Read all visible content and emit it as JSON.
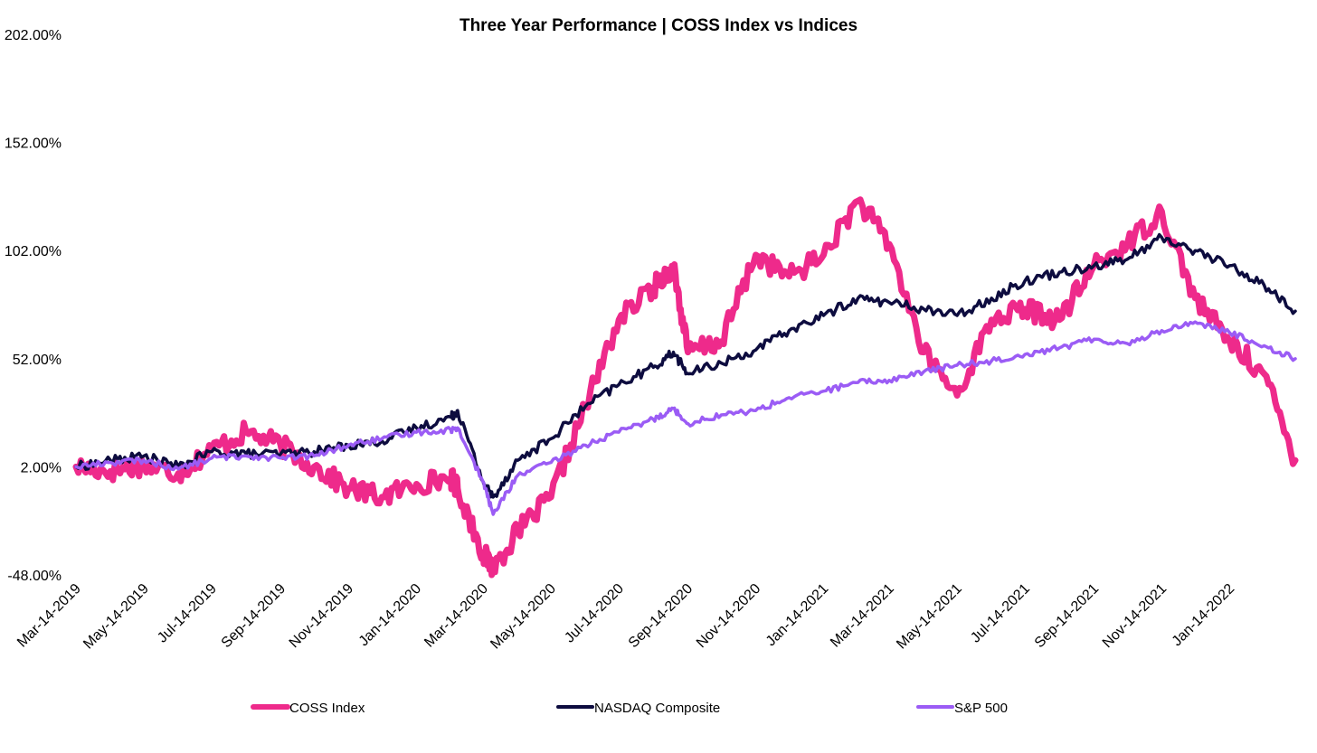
{
  "chart_data": {
    "type": "line",
    "title": "Three Year Performance | COSS Index vs Indices",
    "xlabel": "",
    "ylabel": "",
    "y_unit": "%",
    "ylim": [
      -48,
      202
    ],
    "y_ticks": [
      "202.00%",
      "152.00%",
      "102.00%",
      "52.00%",
      "2.00%",
      "-48.00%"
    ],
    "y_tick_values": [
      202,
      152,
      102,
      52,
      2,
      -48
    ],
    "x_ticks": [
      "Mar-14-2019",
      "May-14-2019",
      "Jul-14-2019",
      "Sep-14-2019",
      "Nov-14-2019",
      "Jan-14-2020",
      "Mar-14-2020",
      "May-14-2020",
      "Jul-14-2020",
      "Sep-14-2020",
      "Nov-14-2020",
      "Jan-14-2021",
      "Mar-14-2021",
      "May-14-2021",
      "Jul-14-2021",
      "Sep-14-2021",
      "Nov-14-2021",
      "Jan-14-2022"
    ],
    "grid": false,
    "legend_position": "bottom",
    "x": [
      "2019-03-14",
      "2019-04-14",
      "2019-05-14",
      "2019-06-14",
      "2019-07-14",
      "2019-08-14",
      "2019-09-14",
      "2019-10-14",
      "2019-11-14",
      "2019-12-14",
      "2020-01-14",
      "2020-02-14",
      "2020-02-20",
      "2020-03-14",
      "2020-03-23",
      "2020-04-14",
      "2020-05-14",
      "2020-06-14",
      "2020-07-14",
      "2020-08-14",
      "2020-09-01",
      "2020-09-14",
      "2020-10-14",
      "2020-11-14",
      "2020-12-14",
      "2021-01-14",
      "2021-02-14",
      "2021-03-14",
      "2021-04-14",
      "2021-05-14",
      "2021-06-14",
      "2021-07-14",
      "2021-08-14",
      "2021-09-14",
      "2021-10-14",
      "2021-11-14",
      "2021-12-14",
      "2022-01-14",
      "2022-02-14",
      "2022-03-14"
    ],
    "series": [
      {
        "name": "COSS Index",
        "color": "#ee2a8b",
        "values": [
          2,
          0,
          3,
          -1,
          10,
          18,
          12,
          2,
          -8,
          -12,
          -6,
          -3,
          -8,
          -38,
          -45,
          -28,
          -12,
          30,
          70,
          85,
          95,
          55,
          60,
          100,
          90,
          100,
          125,
          105,
          55,
          35,
          70,
          75,
          70,
          95,
          105,
          120,
          80,
          60,
          45,
          5
        ]
      },
      {
        "name": "NASDAQ Composite",
        "color": "#0d0c3f",
        "values": [
          2,
          5,
          7,
          2,
          9,
          8,
          8,
          9,
          12,
          14,
          20,
          25,
          28,
          -5,
          -12,
          5,
          15,
          30,
          40,
          48,
          55,
          45,
          50,
          56,
          65,
          72,
          80,
          78,
          75,
          72,
          80,
          88,
          92,
          95,
          98,
          108,
          102,
          95,
          86,
          74
        ]
      },
      {
        "name": "S&P 500",
        "color": "#9b5cf5",
        "values": [
          2,
          4,
          5,
          1,
          6,
          7,
          6,
          7,
          12,
          15,
          18,
          19,
          20,
          -5,
          -20,
          -2,
          4,
          12,
          18,
          24,
          29,
          22,
          26,
          28,
          34,
          37,
          41,
          42,
          46,
          49,
          51,
          54,
          57,
          61,
          59,
          65,
          69,
          64,
          58,
          52
        ]
      }
    ]
  }
}
